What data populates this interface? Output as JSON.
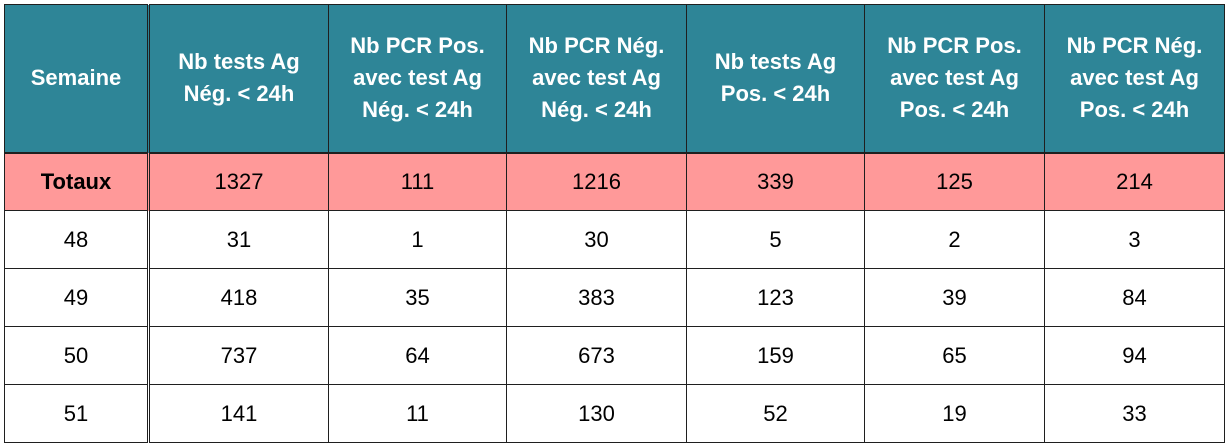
{
  "table": {
    "headers": [
      "Semaine",
      "Nb tests Ag\nNég. < 24h",
      "Nb PCR Pos.\navec test Ag\nNég. < 24h",
      "Nb PCR Nég.\navec test Ag\nNég. < 24h",
      "Nb tests Ag\nPos. < 24h",
      "Nb PCR Pos.\navec test Ag\nPos. < 24h",
      "Nb PCR Nég.\navec test Ag\nPos. < 24h"
    ],
    "totals": [
      "Totaux",
      "1327",
      "111",
      "1216",
      "339",
      "125",
      "214"
    ],
    "rows": [
      [
        "48",
        "31",
        "1",
        "30",
        "5",
        "2",
        "3"
      ],
      [
        "49",
        "418",
        "35",
        "383",
        "123",
        "39",
        "84"
      ],
      [
        "50",
        "737",
        "64",
        "673",
        "159",
        "65",
        "94"
      ],
      [
        "51",
        "141",
        "11",
        "130",
        "52",
        "19",
        "33"
      ]
    ],
    "colors": {
      "header_bg": "#2e8597",
      "header_text": "#ffffff",
      "totals_bg": "#ff9999",
      "row_bg": "#ffffff"
    }
  }
}
